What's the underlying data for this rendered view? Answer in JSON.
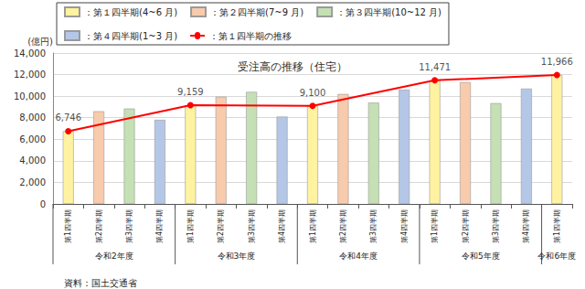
{
  "chart_data": {
    "type": "bar",
    "title": "受注高の推移（住宅）",
    "ylabel": "(億円)",
    "annotation": "資料：国土交通省",
    "categories": [
      "第1四半期",
      "第2四半期",
      "第3四半期",
      "第4四半期",
      "第1四半期",
      "第2四半期",
      "第3四半期",
      "第4四半期",
      "第1四半期",
      "第2四半期",
      "第3四半期",
      "第4四半期",
      "第1四半期",
      "第2四半期",
      "第3四半期",
      "第4四半期",
      "第1四半期"
    ],
    "x_groups": [
      {
        "label": "令和2年度",
        "count": 4
      },
      {
        "label": "令和3年度",
        "count": 4
      },
      {
        "label": "令和4年度",
        "count": 4
      },
      {
        "label": "令和5年度",
        "count": 4
      },
      {
        "label": "令和6年度",
        "count": 1
      }
    ],
    "series": [
      {
        "name": "：第１四半期(4~6 月)",
        "type": "bar",
        "color": "#fff2a0",
        "values": [
          6746,
          null,
          null,
          null,
          9159,
          null,
          null,
          null,
          9100,
          null,
          null,
          null,
          11471,
          null,
          null,
          null,
          11966
        ]
      },
      {
        "name": "：第２四半期(7~9 月)",
        "type": "bar",
        "color": "#f8cbad",
        "values": [
          null,
          8600,
          null,
          null,
          null,
          9950,
          null,
          null,
          null,
          10200,
          null,
          null,
          null,
          11300,
          null,
          null,
          null
        ]
      },
      {
        "name": "：第３四半期(10~12 月)",
        "type": "bar",
        "color": "#c5e0b4",
        "values": [
          null,
          null,
          8850,
          null,
          null,
          null,
          10400,
          null,
          null,
          null,
          9400,
          null,
          null,
          null,
          9350,
          null,
          null
        ]
      },
      {
        "name": "：第４四半期(1~3 月)",
        "type": "bar",
        "color": "#b4c7e7",
        "values": [
          null,
          null,
          null,
          7800,
          null,
          null,
          null,
          8100,
          null,
          null,
          null,
          10600,
          null,
          null,
          null,
          10700,
          null
        ]
      },
      {
        "name": "：第１四半期の推移",
        "type": "line",
        "color": "#ff0000",
        "marker": "circle",
        "data_labels": true,
        "values": [
          6746,
          null,
          null,
          null,
          9159,
          null,
          null,
          null,
          9100,
          null,
          null,
          null,
          11471,
          null,
          null,
          null,
          11966
        ],
        "value_labels": [
          "6,746",
          null,
          null,
          null,
          "9,159",
          null,
          null,
          null,
          "9,100",
          null,
          null,
          null,
          "11,471",
          null,
          null,
          null,
          "11,966"
        ]
      }
    ],
    "ylim": [
      0,
      14000
    ],
    "yticks": [
      0,
      {
        "value": 2000,
        "label": "2,000"
      },
      {
        "value": 4000,
        "label": "4,000"
      },
      {
        "value": 6000,
        "label": "6,000"
      },
      {
        "value": 8000,
        "label": "8,000"
      },
      {
        "value": 10000,
        "label": "10,000"
      },
      {
        "value": 12000,
        "label": "12,000"
      },
      {
        "value": 14000,
        "label": "14,000"
      }
    ],
    "grid": true,
    "legend": "top"
  }
}
